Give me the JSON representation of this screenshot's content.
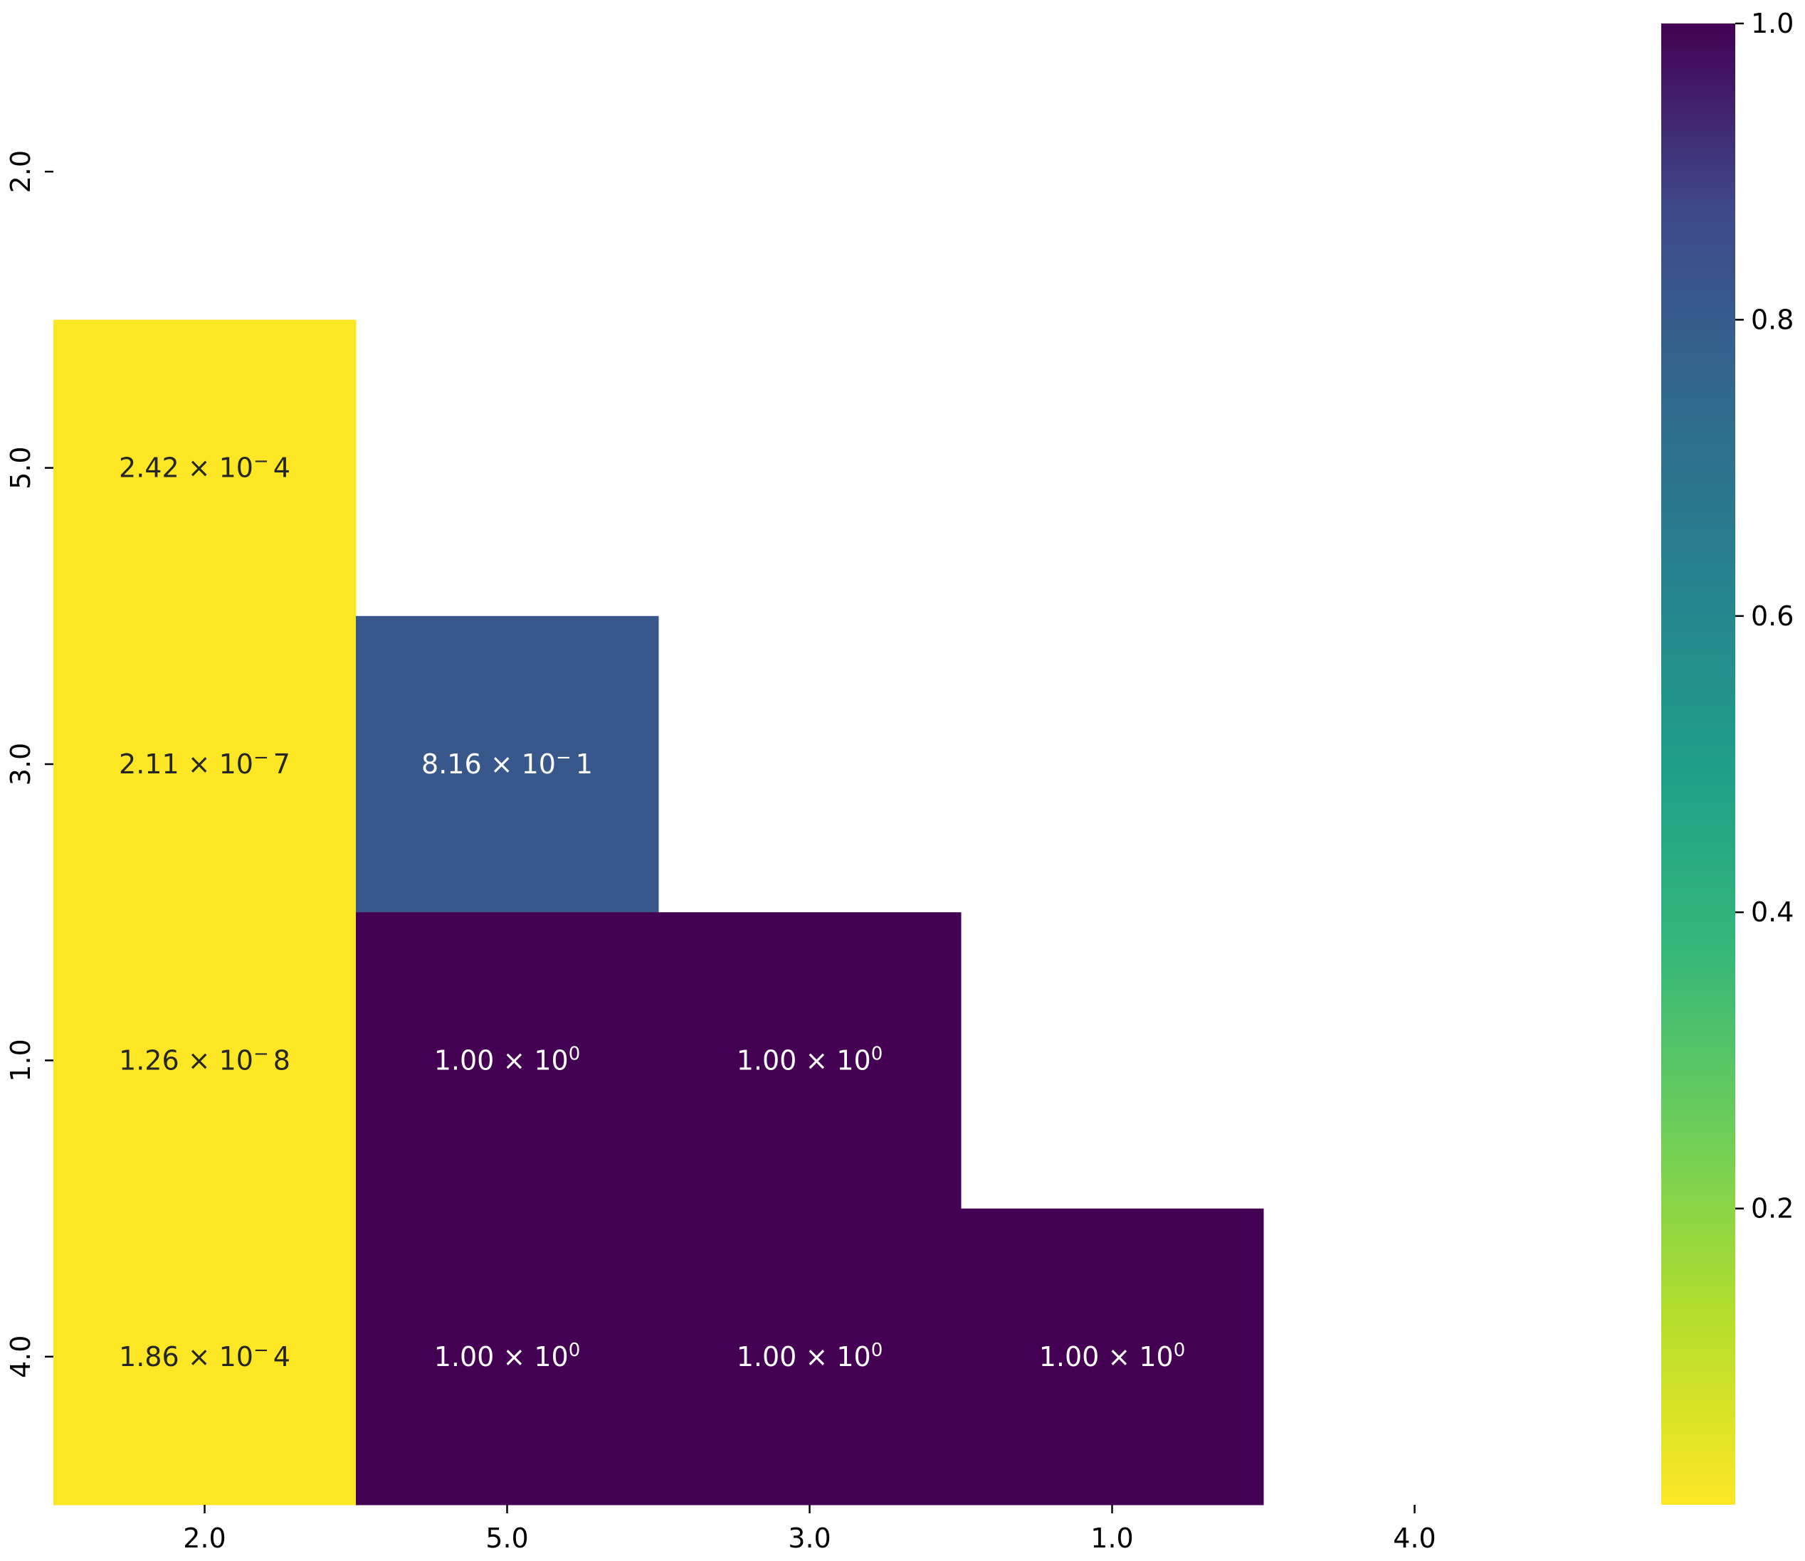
{
  "chart_data": {
    "type": "heatmap",
    "title": "",
    "xlabel": "",
    "ylabel": "",
    "x_categories": [
      "2.0",
      "5.0",
      "3.0",
      "1.0",
      "4.0"
    ],
    "y_categories": [
      "2.0",
      "5.0",
      "3.0",
      "1.0",
      "4.0"
    ],
    "mask": "upper triangle including diagonal (blank)",
    "cells": [
      {
        "row": "5.0",
        "col": "2.0",
        "value": 0.000242,
        "label": "2.42 × 10⁻4"
      },
      {
        "row": "3.0",
        "col": "2.0",
        "value": 2.11e-07,
        "label": "2.11 × 10⁻7"
      },
      {
        "row": "3.0",
        "col": "5.0",
        "value": 0.816,
        "label": "8.16 × 10⁻1"
      },
      {
        "row": "1.0",
        "col": "2.0",
        "value": 1.26e-08,
        "label": "1.26 × 10⁻8"
      },
      {
        "row": "1.0",
        "col": "5.0",
        "value": 1.0,
        "label": "1.00 × 10⁰"
      },
      {
        "row": "1.0",
        "col": "3.0",
        "value": 1.0,
        "label": "1.00 × 10⁰"
      },
      {
        "row": "4.0",
        "col": "2.0",
        "value": 0.000186,
        "label": "1.86 × 10⁻4"
      },
      {
        "row": "4.0",
        "col": "5.0",
        "value": 1.0,
        "label": "1.00 × 10⁰"
      },
      {
        "row": "4.0",
        "col": "3.0",
        "value": 1.0,
        "label": "1.00 × 10⁰"
      },
      {
        "row": "4.0",
        "col": "1.0",
        "value": 1.0,
        "label": "1.00 × 10⁰"
      }
    ],
    "colorbar": {
      "colormap": "viridis (reversed)",
      "range": [
        0,
        1
      ],
      "ticks": [
        "0.2",
        "0.4",
        "0.6",
        "0.8",
        "1.0"
      ]
    },
    "colors": {
      "low": "#fde725",
      "high": "#440154",
      "text_on_light": "#262626",
      "text_on_dark": "#ffffff"
    }
  }
}
